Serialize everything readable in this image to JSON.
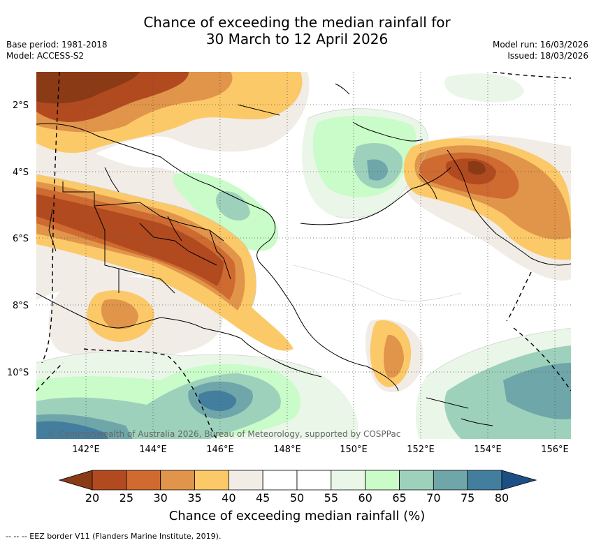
{
  "header": {
    "title_line1": "Chance of exceeding the median rainfall for",
    "title_line2": "30 March to 12 April 2026",
    "base_period": "Base period: 1981-2018",
    "model": "Model: ACCESS-S2",
    "model_run": "Model run: 16/03/2026",
    "issued": "Issued: 18/03/2026"
  },
  "map": {
    "lat_labels": [
      "2°S",
      "4°S",
      "6°S",
      "8°S",
      "10°S"
    ],
    "lon_labels": [
      "142°E",
      "144°E",
      "146°E",
      "148°E",
      "150°E",
      "152°E",
      "154°E",
      "156°E"
    ],
    "copyright": "© Commonwealth of Australia 2026, Bureau of Meteorology, supported by COSPPac"
  },
  "colorbar": {
    "ticks": [
      "20",
      "25",
      "30",
      "35",
      "40",
      "45",
      "50",
      "55",
      "60",
      "65",
      "70",
      "75",
      "80"
    ],
    "colors": [
      "#8b3a16",
      "#b24a1f",
      "#cf6a30",
      "#e0954a",
      "#fcc968",
      "#f1ece6",
      "#ffffff",
      "#ffffff",
      "#e9f6e8",
      "#c9fcc8",
      "#9ed1bb",
      "#6ea6a9",
      "#447e9f",
      "#1d4f85"
    ],
    "title": "Chance of exceeding median rainfall (%)"
  },
  "footer": {
    "legend": "-- -- -- EEZ border V11 (Flanders Marine Institute, 2019)."
  }
}
